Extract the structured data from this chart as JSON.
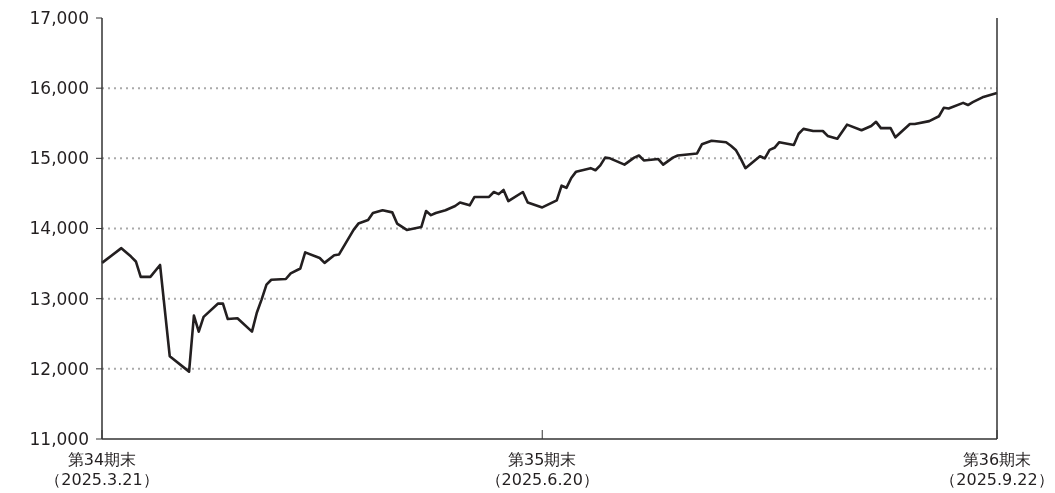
{
  "chart_data": {
    "type": "line",
    "x": [
      "2025-03-21",
      "2025-03-25",
      "2025-03-27",
      "2025-03-28",
      "2025-03-29",
      "2025-03-31",
      "2025-04-02",
      "2025-04-04",
      "2025-04-08",
      "2025-04-09",
      "2025-04-10",
      "2025-04-11",
      "2025-04-14",
      "2025-04-15",
      "2025-04-16",
      "2025-04-18",
      "2025-04-21",
      "2025-04-22",
      "2025-04-23",
      "2025-04-24",
      "2025-04-25",
      "2025-04-28",
      "2025-04-29",
      "2025-05-01",
      "2025-05-02",
      "2025-05-05",
      "2025-05-06",
      "2025-05-08",
      "2025-05-09",
      "2025-05-12",
      "2025-05-13",
      "2025-05-15",
      "2025-05-16",
      "2025-05-18",
      "2025-05-20",
      "2025-05-21",
      "2025-05-23",
      "2025-05-26",
      "2025-05-27",
      "2025-05-28",
      "2025-05-29",
      "2025-05-31",
      "2025-06-02",
      "2025-06-03",
      "2025-06-05",
      "2025-06-06",
      "2025-06-09",
      "2025-06-10",
      "2025-06-11",
      "2025-06-12",
      "2025-06-13",
      "2025-06-16",
      "2025-06-17",
      "2025-06-20",
      "2025-06-23",
      "2025-06-24",
      "2025-06-25",
      "2025-06-26",
      "2025-06-27",
      "2025-06-30",
      "2025-07-01",
      "2025-07-02",
      "2025-07-03",
      "2025-07-04",
      "2025-07-07",
      "2025-07-09",
      "2025-07-10",
      "2025-07-11",
      "2025-07-14",
      "2025-07-15",
      "2025-07-17",
      "2025-07-18",
      "2025-07-22",
      "2025-07-23",
      "2025-07-25",
      "2025-07-28",
      "2025-07-29",
      "2025-07-30",
      "2025-07-31",
      "2025-08-01",
      "2025-08-04",
      "2025-08-05",
      "2025-08-06",
      "2025-08-07",
      "2025-08-08",
      "2025-08-11",
      "2025-08-12",
      "2025-08-13",
      "2025-08-15",
      "2025-08-17",
      "2025-08-18",
      "2025-08-20",
      "2025-08-22",
      "2025-08-25",
      "2025-08-27",
      "2025-08-28",
      "2025-08-29",
      "2025-08-31",
      "2025-09-01",
      "2025-09-04",
      "2025-09-05",
      "2025-09-08",
      "2025-09-10",
      "2025-09-11",
      "2025-09-12",
      "2025-09-15",
      "2025-09-16",
      "2025-09-17",
      "2025-09-19",
      "2025-09-22"
    ],
    "series": [
      {
        "color": "#231f20",
        "values": [
          13510,
          13720,
          13600,
          13530,
          13310,
          13310,
          13480,
          12180,
          11960,
          12760,
          12530,
          12740,
          12930,
          12930,
          12710,
          12720,
          12530,
          12800,
          12990,
          13200,
          13270,
          13280,
          13360,
          13430,
          13660,
          13580,
          13510,
          13620,
          13630,
          13980,
          14070,
          14120,
          14220,
          14260,
          14230,
          14070,
          13980,
          14020,
          14250,
          14190,
          14220,
          14260,
          14320,
          14370,
          14330,
          14450,
          14450,
          14520,
          14490,
          14550,
          14390,
          14520,
          14370,
          14300,
          14400,
          14610,
          14580,
          14720,
          14810,
          14860,
          14830,
          14900,
          15010,
          15000,
          14910,
          15010,
          15040,
          14970,
          14990,
          14910,
          15010,
          15040,
          15070,
          15200,
          15250,
          15230,
          15180,
          15120,
          15000,
          14860,
          15030,
          15000,
          15120,
          15150,
          15230,
          15190,
          15350,
          15420,
          15390,
          15390,
          15320,
          15280,
          15480,
          15400,
          15460,
          15520,
          15430,
          15430,
          15300,
          15490,
          15490,
          15530,
          15600,
          15720,
          15710,
          15790,
          15760,
          15800,
          15870,
          15930
        ]
      }
    ],
    "xlim": [
      "2025-03-21",
      "2025-09-22"
    ],
    "xticks": [
      {
        "value": "2025-03-21",
        "label": "第34期末（2025.3.21）"
      },
      {
        "value": "2025-06-20",
        "label": "第35期末（2025.6.20）"
      },
      {
        "value": "2025-09-22",
        "label": "第36期末（2025.9.22）"
      }
    ],
    "ylim": [
      11000,
      17000
    ],
    "yticks": [
      {
        "value": 11000,
        "label": "11,000"
      },
      {
        "value": 12000,
        "label": "12,000"
      },
      {
        "value": 13000,
        "label": "13,000"
      },
      {
        "value": 14000,
        "label": "14,000"
      },
      {
        "value": 15000,
        "label": "15,000"
      },
      {
        "value": 16000,
        "label": "16,000"
      },
      {
        "value": 17000,
        "label": "17,000"
      }
    ],
    "grid": "y",
    "line_style": "solid",
    "marker": "none"
  }
}
